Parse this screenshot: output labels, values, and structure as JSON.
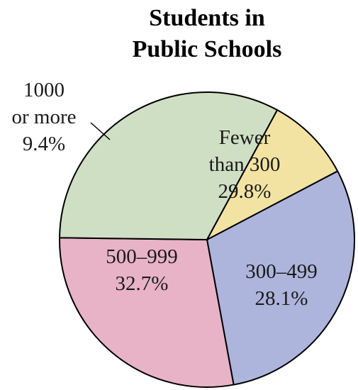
{
  "chart_data": {
    "type": "pie",
    "title": [
      "Students in",
      "Public Schools"
    ],
    "slices": [
      {
        "label": [
          "Fewer",
          "than 300"
        ],
        "value": 29.8,
        "value_label": "29.8%",
        "color": "#adb5dc"
      },
      {
        "label": [
          "300–499"
        ],
        "value": 28.1,
        "value_label": "28.1%",
        "color": "#e8b3c7"
      },
      {
        "label": [
          "500–999"
        ],
        "value": 32.7,
        "value_label": "32.7%",
        "color": "#cfdfc4"
      },
      {
        "label": [
          "1000",
          "or more"
        ],
        "value": 9.4,
        "value_label": "9.4%",
        "color": "#f3e3a3"
      }
    ],
    "start_angle_deg": -27.7,
    "direction": "clockwise",
    "stroke_color": "#000000"
  }
}
